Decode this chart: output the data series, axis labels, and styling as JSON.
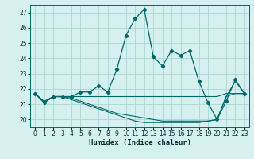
{
  "title": "",
  "xlabel": "Humidex (Indice chaleur)",
  "background_color": "#d6f0f0",
  "grid_color": "#a8d8d8",
  "line_color": "#006868",
  "xlim": [
    -0.5,
    23.5
  ],
  "ylim": [
    19.5,
    27.5
  ],
  "yticks": [
    20,
    21,
    22,
    23,
    24,
    25,
    26,
    27
  ],
  "xticks": [
    0,
    1,
    2,
    3,
    4,
    5,
    6,
    7,
    8,
    9,
    10,
    11,
    12,
    13,
    14,
    15,
    16,
    17,
    18,
    19,
    20,
    21,
    22,
    23
  ],
  "series": [
    {
      "y": [
        21.7,
        21.1,
        21.5,
        21.5,
        21.5,
        21.8,
        21.8,
        22.2,
        21.8,
        23.3,
        25.5,
        26.6,
        27.2,
        24.1,
        23.5,
        24.5,
        24.2,
        24.5,
        22.5,
        21.1,
        20.0,
        21.2,
        22.6,
        21.7
      ],
      "marker": true,
      "linestyle": "-"
    },
    {
      "y": [
        21.7,
        21.2,
        21.5,
        21.5,
        21.5,
        21.5,
        21.5,
        21.5,
        21.5,
        21.5,
        21.5,
        21.5,
        21.5,
        21.5,
        21.5,
        21.5,
        21.5,
        21.5,
        21.5,
        21.5,
        21.5,
        21.7,
        21.7,
        21.7
      ],
      "marker": false,
      "linestyle": "-"
    },
    {
      "y": [
        21.7,
        21.1,
        21.5,
        21.5,
        21.4,
        21.2,
        21.0,
        20.8,
        20.6,
        20.4,
        20.3,
        20.2,
        20.1,
        20.0,
        19.9,
        19.9,
        19.9,
        19.9,
        19.9,
        19.9,
        20.0,
        21.5,
        21.7,
        21.7
      ],
      "marker": false,
      "linestyle": "-"
    },
    {
      "y": [
        21.7,
        21.1,
        21.5,
        21.5,
        21.3,
        21.1,
        20.9,
        20.7,
        20.5,
        20.3,
        20.1,
        19.9,
        19.8,
        19.8,
        19.8,
        19.8,
        19.8,
        19.8,
        19.8,
        19.9,
        20.0,
        21.5,
        22.5,
        21.7
      ],
      "marker": false,
      "linestyle": "-"
    }
  ]
}
